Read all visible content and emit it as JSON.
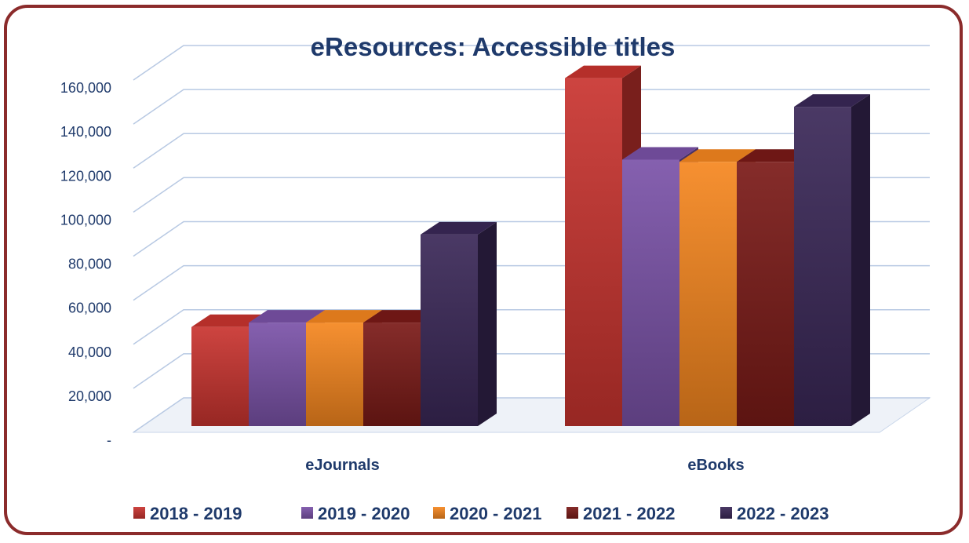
{
  "chart_data": {
    "type": "bar",
    "title": "eResources: Accessible titles",
    "categories": [
      "eJournals",
      "eBooks"
    ],
    "series": [
      {
        "name": "2018 - 2019",
        "values": [
          45000,
          158000
        ],
        "color": "#c9342f"
      },
      {
        "name": "2019 - 2020",
        "values": [
          47000,
          121000
        ],
        "color": "#7a52a8"
      },
      {
        "name": "2020 - 2021",
        "values": [
          47000,
          120000
        ],
        "color": "#f5861f"
      },
      {
        "name": "2021 - 2022",
        "values": [
          47000,
          120000
        ],
        "color": "#7a1a17"
      },
      {
        "name": "2022 - 2023",
        "values": [
          87000,
          145000
        ],
        "color": "#3a2858"
      }
    ],
    "ylim": [
      0,
      160000
    ],
    "yticks": [
      {
        "value": 0,
        "label": "-"
      },
      {
        "value": 20000,
        "label": "20,000"
      },
      {
        "value": 40000,
        "label": "40,000"
      },
      {
        "value": 60000,
        "label": "60,000"
      },
      {
        "value": 80000,
        "label": "80,000"
      },
      {
        "value": 100000,
        "label": "100,000"
      },
      {
        "value": 120000,
        "label": "120,000"
      },
      {
        "value": 140000,
        "label": "140,000"
      },
      {
        "value": 160000,
        "label": "160,000"
      }
    ],
    "grid": true,
    "legend_position": "bottom",
    "style": "3d-column"
  }
}
